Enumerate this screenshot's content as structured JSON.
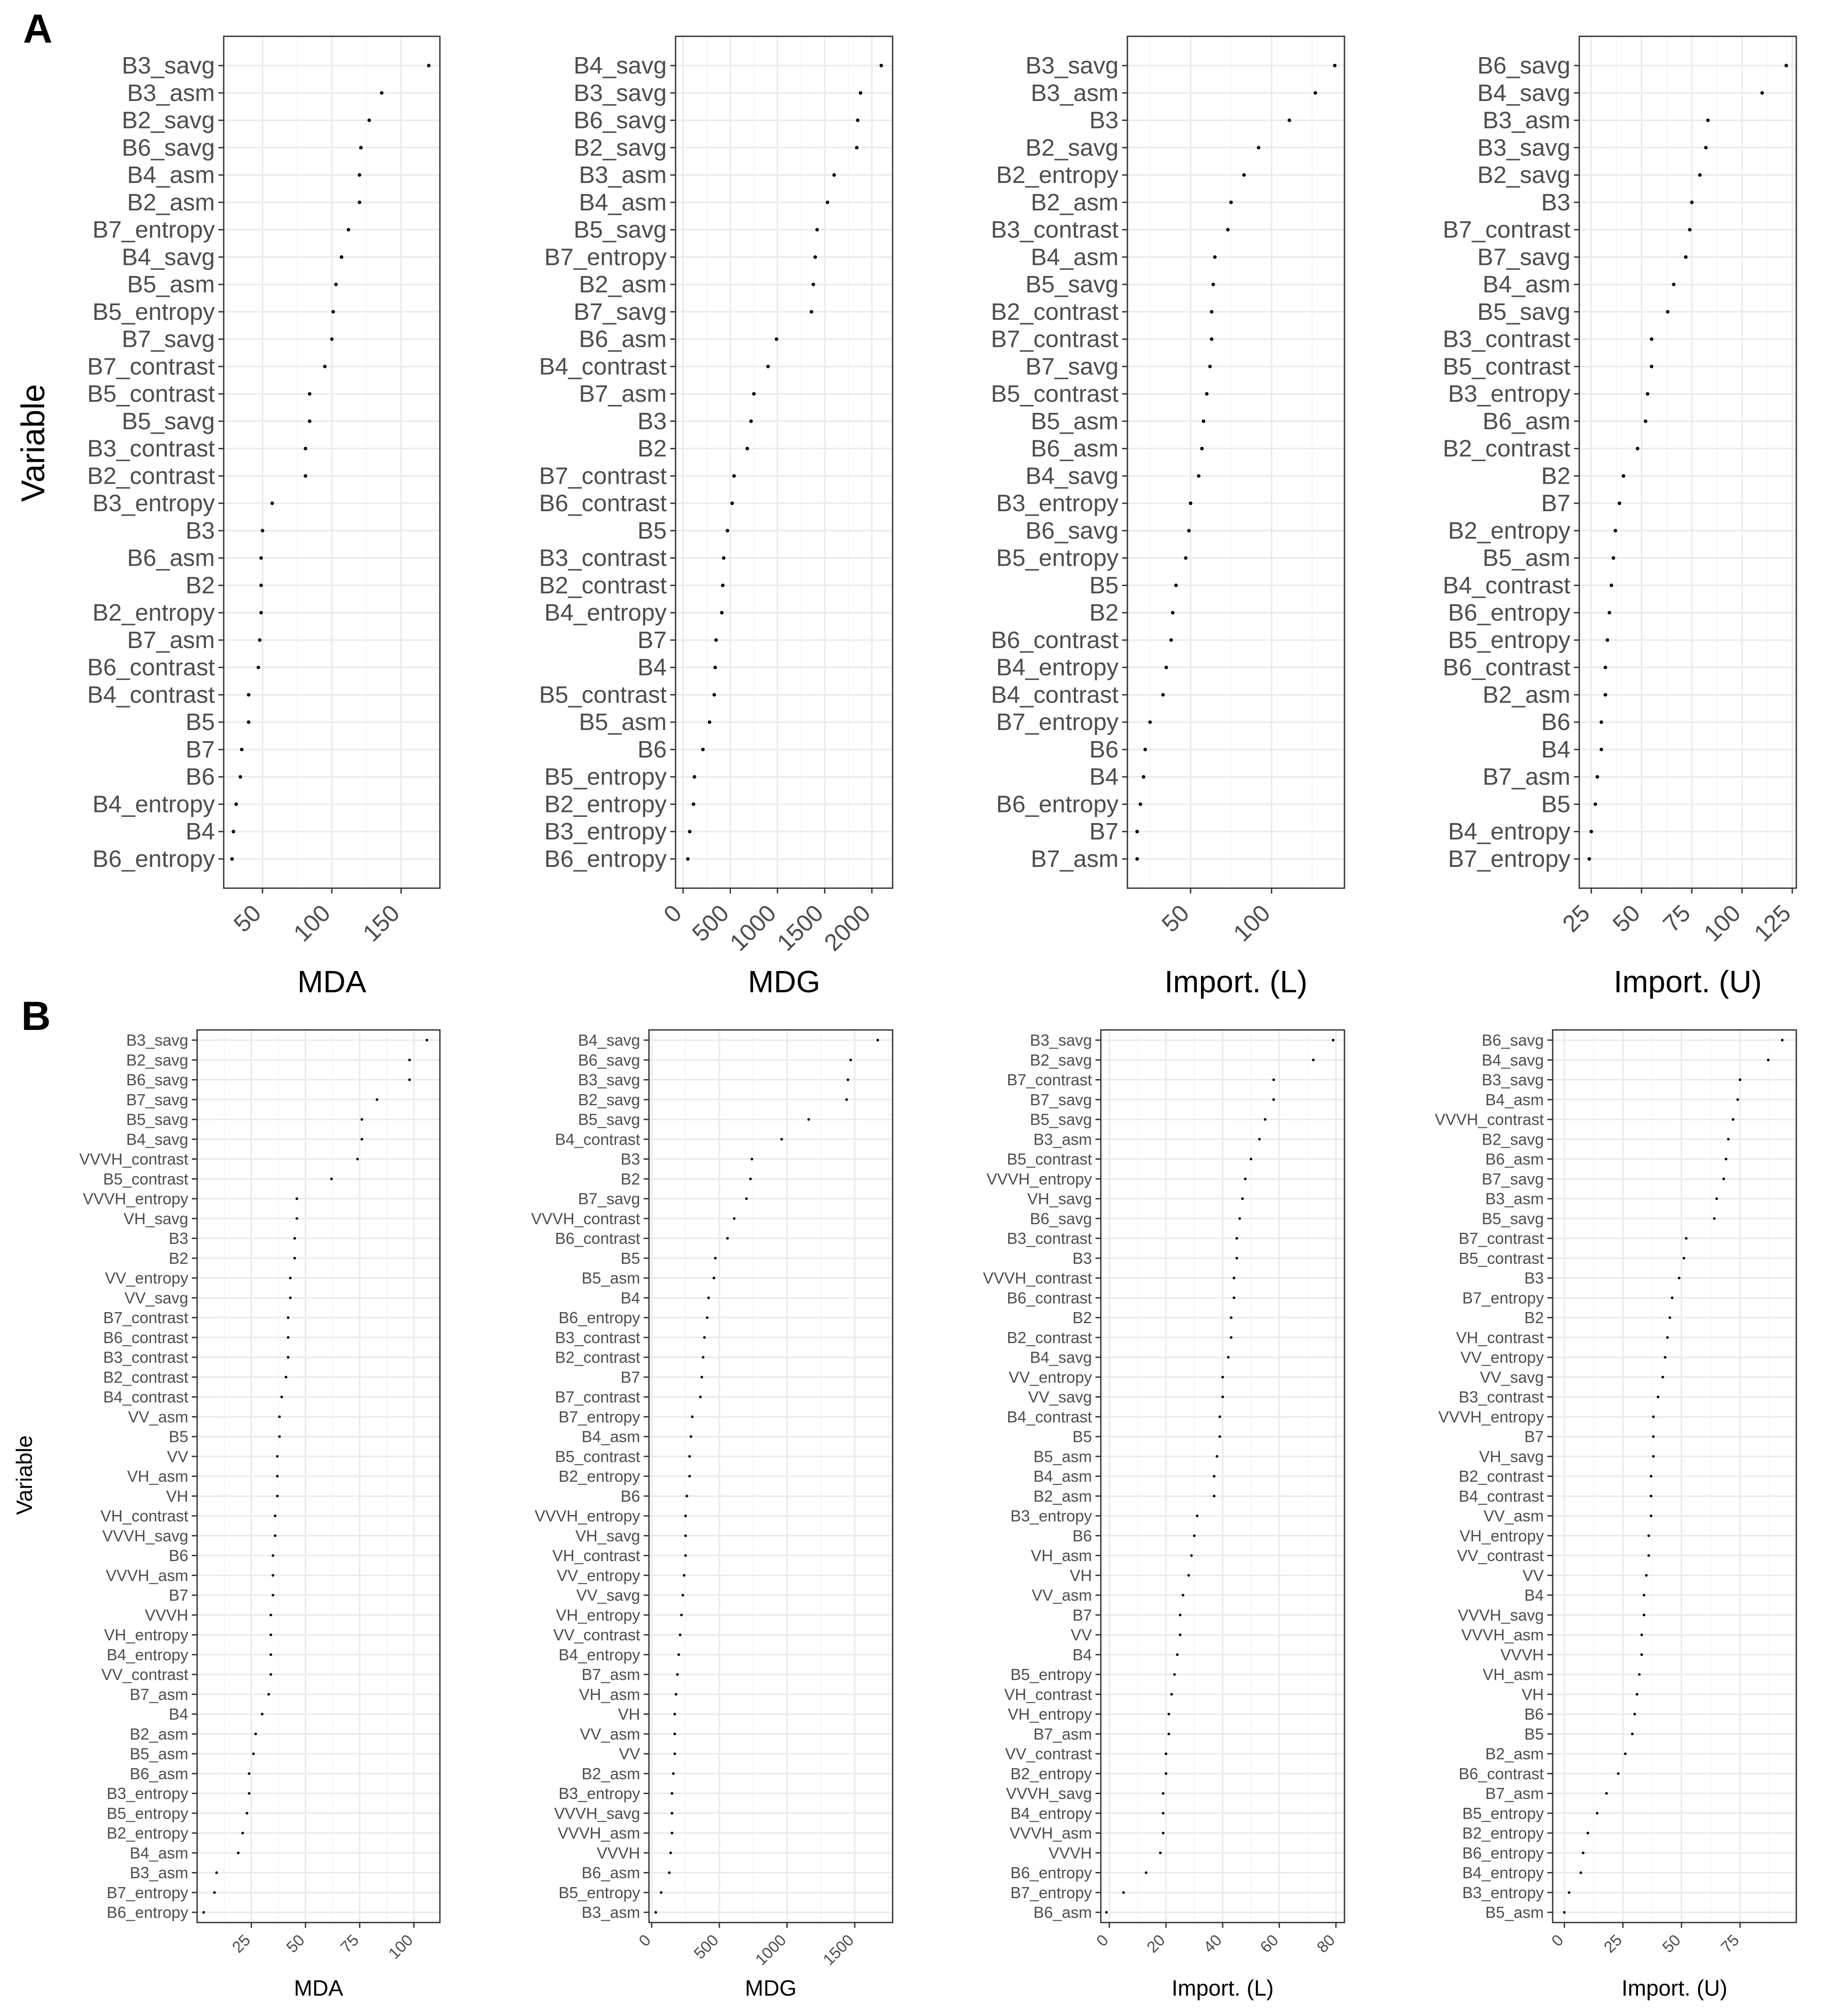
{
  "panels": [
    {
      "letter": "A"
    },
    {
      "letter": "B"
    }
  ],
  "y_axis_title": "Variable",
  "chart_data": [
    {
      "panel": "A",
      "type": "scatter",
      "xlabel": "MDA",
      "ylabel": "Variable",
      "xlim": [
        22,
        178
      ],
      "xticks": [
        50,
        100,
        150
      ],
      "variables": [
        "B3_savg",
        "B3_asm",
        "B2_savg",
        "B6_savg",
        "B4_asm",
        "B2_asm",
        "B7_entropy",
        "B4_savg",
        "B5_asm",
        "B5_entropy",
        "B7_savg",
        "B7_contrast",
        "B5_contrast",
        "B5_savg",
        "B3_contrast",
        "B2_contrast",
        "B3_entropy",
        "B3",
        "B6_asm",
        "B2",
        "B2_entropy",
        "B7_asm",
        "B6_contrast",
        "B4_contrast",
        "B5",
        "B7",
        "B6",
        "B4_entropy",
        "B4",
        "B6_entropy"
      ],
      "values": [
        170,
        136,
        127,
        121,
        120,
        120,
        112,
        107,
        103,
        101,
        100,
        95,
        84,
        84,
        81,
        81,
        57,
        50,
        49,
        49,
        49,
        48,
        47,
        40,
        40,
        35,
        34,
        31,
        29,
        28
      ]
    },
    {
      "panel": "A",
      "type": "scatter",
      "xlabel": "MDG",
      "ylabel": "Variable",
      "xlim": [
        -80,
        2220
      ],
      "xticks": [
        0,
        500,
        1000,
        1500,
        2000
      ],
      "variables": [
        "B4_savg",
        "B3_savg",
        "B6_savg",
        "B2_savg",
        "B3_asm",
        "B4_asm",
        "B5_savg",
        "B7_entropy",
        "B2_asm",
        "B7_savg",
        "B6_asm",
        "B4_contrast",
        "B7_asm",
        "B3",
        "B2",
        "B7_contrast",
        "B6_contrast",
        "B5",
        "B3_contrast",
        "B2_contrast",
        "B4_entropy",
        "B7",
        "B4",
        "B5_contrast",
        "B5_asm",
        "B6",
        "B5_entropy",
        "B2_entropy",
        "B3_entropy",
        "B6_entropy"
      ],
      "values": [
        2100,
        1880,
        1850,
        1840,
        1600,
        1530,
        1420,
        1400,
        1380,
        1360,
        990,
        900,
        750,
        720,
        680,
        540,
        520,
        470,
        430,
        420,
        410,
        350,
        340,
        330,
        280,
        210,
        120,
        110,
        70,
        50
      ]
    },
    {
      "panel": "A",
      "type": "scatter",
      "xlabel": "Import. (L)",
      "ylabel": "Variable",
      "xlim": [
        11,
        145
      ],
      "xticks": [
        50,
        100
      ],
      "variables": [
        "B3_savg",
        "B3_asm",
        "B3",
        "B2_savg",
        "B2_entropy",
        "B2_asm",
        "B3_contrast",
        "B4_asm",
        "B5_savg",
        "B2_contrast",
        "B7_contrast",
        "B7_savg",
        "B5_contrast",
        "B5_asm",
        "B6_asm",
        "B4_savg",
        "B3_entropy",
        "B6_savg",
        "B5_entropy",
        "B5",
        "B2",
        "B6_contrast",
        "B4_entropy",
        "B4_contrast",
        "B7_entropy",
        "B6",
        "B4",
        "B6_entropy",
        "B7",
        "B7_asm"
      ],
      "values": [
        139,
        127,
        111,
        92,
        83,
        75,
        73,
        65,
        64,
        63,
        63,
        62,
        60,
        58,
        57,
        55,
        50,
        49,
        47,
        41,
        39,
        38,
        35,
        33,
        25,
        22,
        21,
        19,
        17,
        17
      ]
    },
    {
      "panel": "A",
      "type": "scatter",
      "xlabel": "Import. (U)",
      "ylabel": "Variable",
      "xlim": [
        19,
        127
      ],
      "xticks": [
        25,
        50,
        75,
        100,
        125
      ],
      "variables": [
        "B6_savg",
        "B4_savg",
        "B3_asm",
        "B3_savg",
        "B2_savg",
        "B3",
        "B7_contrast",
        "B7_savg",
        "B4_asm",
        "B5_savg",
        "B3_contrast",
        "B5_contrast",
        "B3_entropy",
        "B6_asm",
        "B2_contrast",
        "B2",
        "B7",
        "B2_entropy",
        "B5_asm",
        "B4_contrast",
        "B6_entropy",
        "B5_entropy",
        "B6_contrast",
        "B2_asm",
        "B6",
        "B4",
        "B7_asm",
        "B5",
        "B4_entropy",
        "B7_entropy"
      ],
      "values": [
        122,
        110,
        83,
        82,
        79,
        75,
        74,
        72,
        66,
        63,
        55,
        55,
        53,
        52,
        48,
        41,
        39,
        37,
        36,
        35,
        34,
        33,
        32,
        32,
        30,
        30,
        28,
        27,
        25,
        24
      ]
    },
    {
      "panel": "B",
      "type": "scatter",
      "xlabel": "MDA",
      "ylabel": "Variable",
      "xlim": [
        0,
        112
      ],
      "xticks": [
        25,
        50,
        75,
        100
      ],
      "variables": [
        "B3_savg",
        "B2_savg",
        "B6_savg",
        "B7_savg",
        "B5_savg",
        "B4_savg",
        "VVVH_contrast",
        "B5_contrast",
        "VVVH_entropy",
        "VH_savg",
        "B3",
        "B2",
        "VV_entropy",
        "VV_savg",
        "B7_contrast",
        "B6_contrast",
        "B3_contrast",
        "B2_contrast",
        "B4_contrast",
        "VV_asm",
        "B5",
        "VV",
        "VH_asm",
        "VH",
        "VH_contrast",
        "VVVH_savg",
        "B6",
        "VVVH_asm",
        "B7",
        "VVVH",
        "VH_entropy",
        "B4_entropy",
        "VV_contrast",
        "B7_asm",
        "B4",
        "B2_asm",
        "B5_asm",
        "B6_asm",
        "B3_entropy",
        "B5_entropy",
        "B2_entropy",
        "B4_asm",
        "B3_asm",
        "B7_entropy",
        "B6_entropy"
      ],
      "values": [
        106,
        98,
        98,
        83,
        76,
        76,
        74,
        62,
        46,
        46,
        45,
        45,
        43,
        43,
        42,
        42,
        42,
        41,
        39,
        38,
        38,
        37,
        37,
        37,
        36,
        36,
        35,
        35,
        35,
        34,
        34,
        34,
        34,
        33,
        30,
        27,
        26,
        24,
        24,
        23,
        21,
        19,
        9,
        8,
        3
      ]
    },
    {
      "panel": "B",
      "type": "scatter",
      "xlabel": "MDG",
      "ylabel": "Variable",
      "xlim": [
        -20,
        1780
      ],
      "xticks": [
        0,
        500,
        1000,
        1500
      ],
      "variables": [
        "B4_savg",
        "B6_savg",
        "B3_savg",
        "B2_savg",
        "B5_savg",
        "B4_contrast",
        "B3",
        "B2",
        "B7_savg",
        "VVVH_contrast",
        "B6_contrast",
        "B5",
        "B5_asm",
        "B4",
        "B6_entropy",
        "B3_contrast",
        "B2_contrast",
        "B7",
        "B7_contrast",
        "B7_entropy",
        "B4_asm",
        "B5_contrast",
        "B2_entropy",
        "B6",
        "VVVH_entropy",
        "VH_savg",
        "VH_contrast",
        "VV_entropy",
        "VV_savg",
        "VH_entropy",
        "VV_contrast",
        "B4_entropy",
        "B7_asm",
        "VH_asm",
        "VH",
        "VV_asm",
        "VV",
        "B2_asm",
        "B3_entropy",
        "VVVH_savg",
        "VVVH_asm",
        "VVVH",
        "B6_asm",
        "B5_entropy",
        "B3_asm"
      ],
      "values": [
        1670,
        1470,
        1450,
        1440,
        1160,
        960,
        740,
        730,
        700,
        610,
        560,
        470,
        460,
        420,
        410,
        390,
        380,
        370,
        360,
        300,
        290,
        280,
        280,
        260,
        250,
        250,
        250,
        240,
        230,
        220,
        210,
        200,
        190,
        180,
        170,
        170,
        170,
        160,
        150,
        150,
        150,
        140,
        130,
        70,
        30
      ]
    },
    {
      "panel": "B",
      "type": "scatter",
      "xlabel": "Import. (L)",
      "ylabel": "Variable",
      "xlim": [
        -3,
        83
      ],
      "xticks": [
        0,
        20,
        40,
        60,
        80
      ],
      "variables": [
        "B3_savg",
        "B2_savg",
        "B7_contrast",
        "B7_savg",
        "B5_savg",
        "B3_asm",
        "B5_contrast",
        "VVVH_entropy",
        "VH_savg",
        "B6_savg",
        "B3_contrast",
        "B3",
        "VVVH_contrast",
        "B6_contrast",
        "B2",
        "B2_contrast",
        "B4_savg",
        "VV_entropy",
        "VV_savg",
        "B4_contrast",
        "B5",
        "B5_asm",
        "B4_asm",
        "B2_asm",
        "B3_entropy",
        "B6",
        "VH_asm",
        "VH",
        "VV_asm",
        "B7",
        "VV",
        "B4",
        "B5_entropy",
        "VH_contrast",
        "VH_entropy",
        "B7_asm",
        "VV_contrast",
        "B2_entropy",
        "VVVH_savg",
        "B4_entropy",
        "VVVH_asm",
        "VVVH",
        "B6_entropy",
        "B7_entropy",
        "B6_asm"
      ],
      "values": [
        79,
        72,
        58,
        58,
        55,
        53,
        50,
        48,
        47,
        46,
        45,
        45,
        44,
        44,
        43,
        43,
        42,
        40,
        40,
        39,
        39,
        38,
        37,
        37,
        31,
        30,
        29,
        28,
        26,
        25,
        25,
        24,
        23,
        22,
        21,
        21,
        20,
        20,
        19,
        19,
        19,
        18,
        13,
        5,
        -1
      ]
    },
    {
      "panel": "B",
      "type": "scatter",
      "xlabel": "Import. (U)",
      "ylabel": "Variable",
      "xlim": [
        -5,
        99
      ],
      "xticks": [
        0,
        25,
        50,
        75
      ],
      "variables": [
        "B6_savg",
        "B4_savg",
        "B3_savg",
        "B4_asm",
        "VVVH_contrast",
        "B2_savg",
        "B6_asm",
        "B7_savg",
        "B3_asm",
        "B5_savg",
        "B7_contrast",
        "B5_contrast",
        "B3",
        "B7_entropy",
        "B2",
        "VH_contrast",
        "VV_entropy",
        "VV_savg",
        "B3_contrast",
        "VVVH_entropy",
        "B7",
        "VH_savg",
        "B2_contrast",
        "B4_contrast",
        "VV_asm",
        "VH_entropy",
        "VV_contrast",
        "VV",
        "B4",
        "VVVH_savg",
        "VVVH_asm",
        "VVVH",
        "VH_asm",
        "VH",
        "B6",
        "B5",
        "B2_asm",
        "B6_contrast",
        "B7_asm",
        "B5_entropy",
        "B2_entropy",
        "B6_entropy",
        "B4_entropy",
        "B3_entropy",
        "B5_asm"
      ],
      "values": [
        93,
        87,
        75,
        74,
        72,
        70,
        69,
        68,
        65,
        64,
        52,
        51,
        49,
        46,
        45,
        44,
        43,
        42,
        40,
        38,
        38,
        38,
        37,
        37,
        37,
        36,
        36,
        35,
        34,
        34,
        33,
        33,
        32,
        31,
        30,
        29,
        26,
        23,
        18,
        14,
        10,
        8,
        7,
        2,
        0
      ]
    }
  ]
}
